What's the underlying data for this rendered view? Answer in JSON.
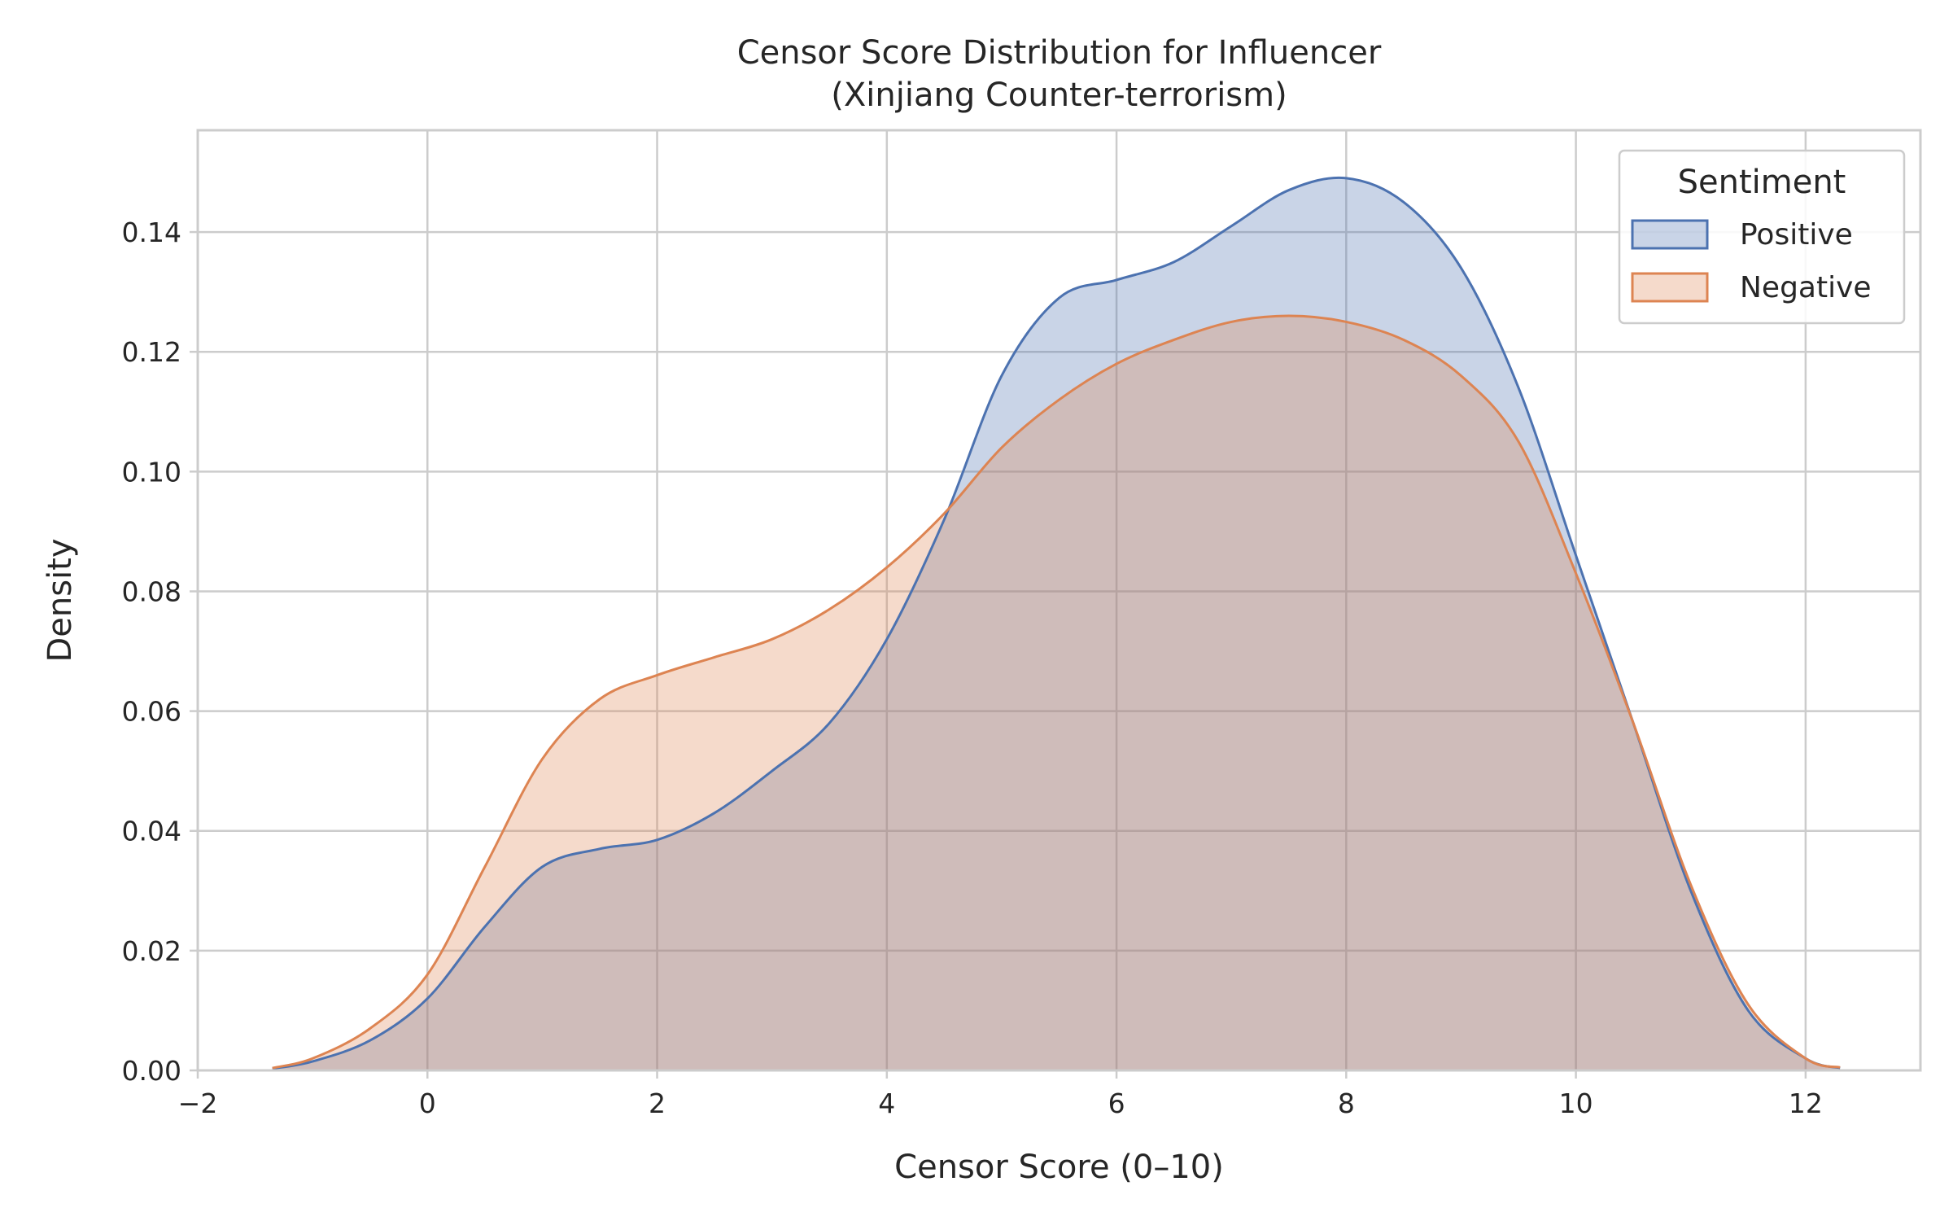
{
  "chart_data": {
    "type": "area",
    "title": "Censor Score Distribution for Influencer\n(Xinjiang Counter-terrorism)",
    "xlabel": "Censor Score (0–10)",
    "ylabel": "Density",
    "xlim": [
      -2,
      13
    ],
    "ylim": [
      0,
      0.157
    ],
    "xticks": [
      -2,
      0,
      2,
      4,
      6,
      8,
      10,
      12
    ],
    "xtick_labels": [
      "−2",
      "0",
      "2",
      "4",
      "6",
      "8",
      "10",
      "12"
    ],
    "yticks": [
      0,
      0.02,
      0.04,
      0.06,
      0.08,
      0.1,
      0.12,
      0.14
    ],
    "ytick_labels": [
      "0.00",
      "0.02",
      "0.04",
      "0.06",
      "0.08",
      "0.10",
      "0.12",
      "0.14"
    ],
    "grid": true,
    "legend": {
      "title": "Sentiment",
      "position": "top-right"
    },
    "series": [
      {
        "name": "Positive",
        "color": "#4c72b0",
        "fill": "#c6d2e6",
        "x": [
          -1.35,
          -1.0,
          -0.5,
          0.0,
          0.5,
          1.0,
          1.5,
          2.0,
          2.5,
          3.0,
          3.5,
          4.0,
          4.5,
          5.0,
          5.5,
          6.0,
          6.5,
          7.0,
          7.5,
          8.0,
          8.5,
          9.0,
          9.5,
          10.0,
          10.5,
          11.0,
          11.5,
          12.0,
          12.3
        ],
        "y": [
          0.0003,
          0.0015,
          0.005,
          0.012,
          0.024,
          0.034,
          0.037,
          0.0385,
          0.043,
          0.05,
          0.058,
          0.072,
          0.092,
          0.116,
          0.129,
          0.132,
          0.135,
          0.141,
          0.147,
          0.149,
          0.145,
          0.134,
          0.114,
          0.086,
          0.058,
          0.03,
          0.01,
          0.002,
          0.0004
        ]
      },
      {
        "name": "Negative",
        "color": "#dd8452",
        "fill": "#f2d1c1",
        "x": [
          -1.35,
          -1.0,
          -0.5,
          0.0,
          0.5,
          1.0,
          1.5,
          2.0,
          2.5,
          3.0,
          3.5,
          4.0,
          4.5,
          5.0,
          5.5,
          6.0,
          6.5,
          7.0,
          7.5,
          8.0,
          8.5,
          9.0,
          9.5,
          10.0,
          10.5,
          11.0,
          11.5,
          12.0,
          12.3
        ],
        "y": [
          0.0004,
          0.002,
          0.007,
          0.016,
          0.034,
          0.052,
          0.062,
          0.066,
          0.069,
          0.072,
          0.077,
          0.084,
          0.093,
          0.104,
          0.112,
          0.118,
          0.122,
          0.125,
          0.126,
          0.125,
          0.122,
          0.116,
          0.105,
          0.083,
          0.058,
          0.031,
          0.011,
          0.002,
          0.0005
        ]
      }
    ]
  }
}
